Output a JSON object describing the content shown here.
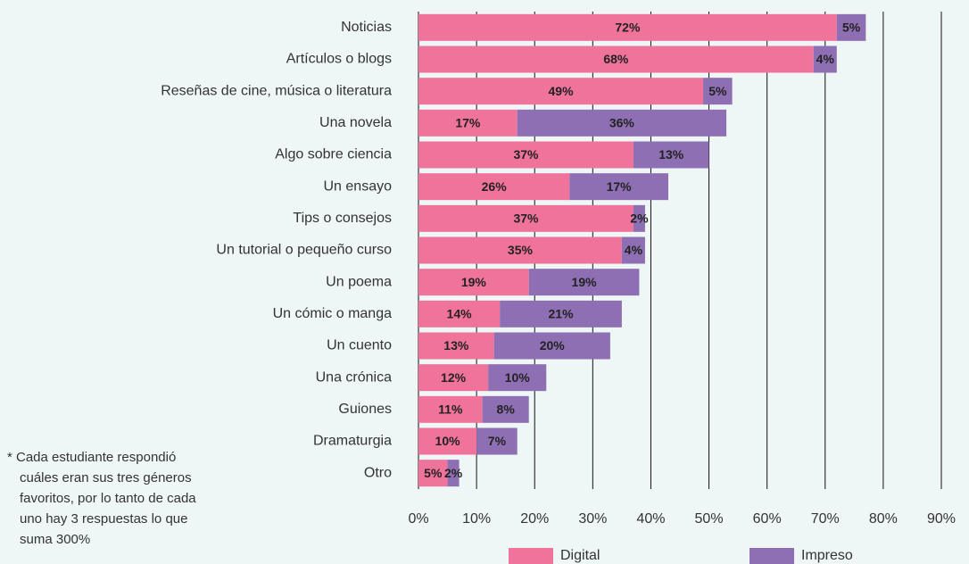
{
  "chart_data": {
    "type": "stacked-bar-horizontal",
    "categories": [
      "Noticias",
      "Artículos o blogs",
      "Reseñas de cine, música o literatura",
      "Una novela",
      "Algo sobre ciencia",
      "Un ensayo",
      "Tips o consejos",
      "Un tutorial o pequeño curso",
      "Un poema",
      "Un cómic o manga",
      "Un cuento",
      "Una crónica",
      "Guiones",
      "Dramaturgia",
      "Otro"
    ],
    "series": [
      {
        "name": "Digital",
        "color": "#f0739c",
        "values": [
          72,
          68,
          49,
          17,
          37,
          26,
          37,
          35,
          19,
          14,
          13,
          12,
          11,
          10,
          5
        ],
        "value_labels": [
          "72%",
          "68%",
          "49%",
          "17%",
          "37%",
          "26%",
          "37%",
          "35%",
          "19%",
          "14%",
          "13%",
          "12%",
          "11%",
          "10%",
          "5%"
        ]
      },
      {
        "name": "Impreso",
        "color": "#8e6fb3",
        "values": [
          5,
          4,
          5,
          36,
          13,
          17,
          2,
          4,
          19,
          21,
          20,
          10,
          8,
          7,
          2
        ],
        "value_labels": [
          "5%",
          "4%",
          "5%",
          "36%",
          "13%",
          "17%",
          "2%",
          "4%",
          "19%",
          "21%",
          "20%",
          "10%",
          "8%",
          "7%",
          "2%"
        ]
      }
    ],
    "xlim": [
      0,
      90
    ],
    "xticks": [
      {
        "value": 0,
        "label": "0%"
      },
      {
        "value": 10,
        "label": "10%"
      },
      {
        "value": 20,
        "label": "20%"
      },
      {
        "value": 30,
        "label": "30%"
      },
      {
        "value": 40,
        "label": "40%"
      },
      {
        "value": 50,
        "label": "50%"
      },
      {
        "value": 60,
        "label": "60%"
      },
      {
        "value": 70,
        "label": "70%"
      },
      {
        "value": 80,
        "label": "80%"
      },
      {
        "value": 90,
        "label": "90%"
      }
    ],
    "grid": true,
    "legend": "bottom",
    "footnote": [
      "* Cada estudiante respondió",
      "cuáles eran sus tres géneros",
      "favoritos, por lo tanto de cada",
      "uno hay 3 respuestas lo que",
      "suma 300%"
    ]
  }
}
